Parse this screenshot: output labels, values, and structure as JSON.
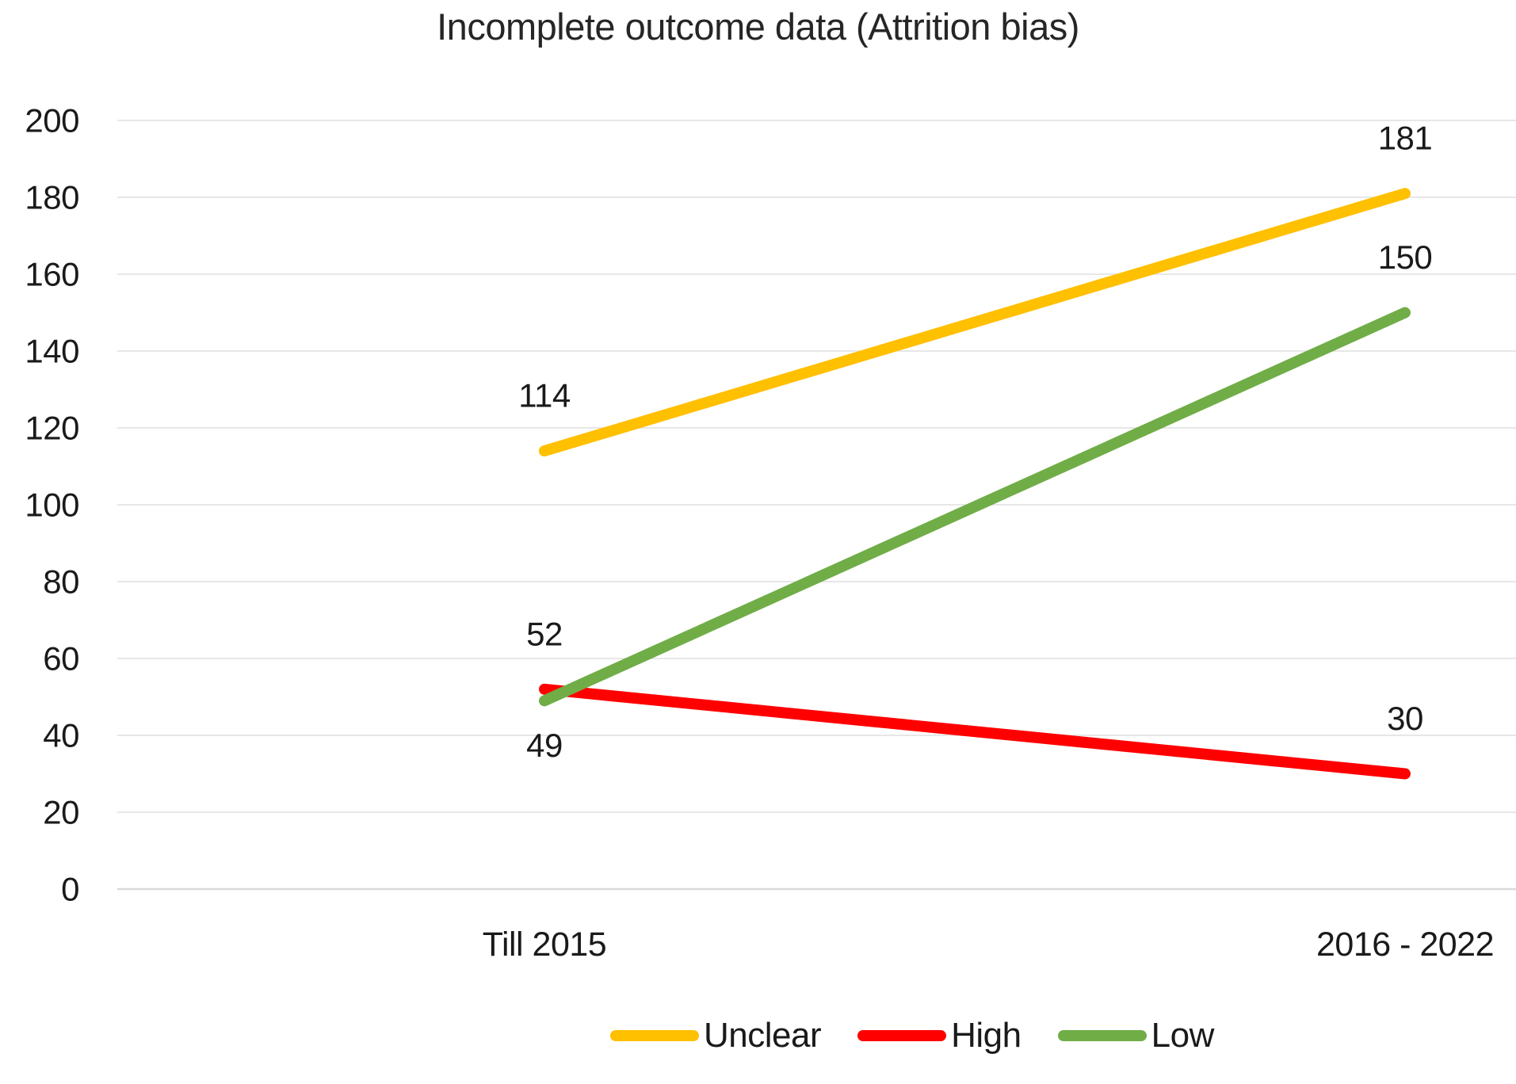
{
  "chart_data": {
    "type": "line",
    "title": "Incomplete outcome data (Attrition bias)",
    "categories": [
      "Till 2015",
      "2016 - 2022"
    ],
    "series": [
      {
        "name": "Unclear",
        "color": "#FFC000",
        "values": [
          114,
          181
        ],
        "label_positions": [
          "above",
          "above"
        ]
      },
      {
        "name": "High",
        "color": "#FF0000",
        "values": [
          52,
          30
        ],
        "label_positions": [
          "above",
          "above"
        ]
      },
      {
        "name": "Low",
        "color": "#70AD47",
        "values": [
          49,
          150
        ],
        "label_positions": [
          "below",
          "above"
        ]
      }
    ],
    "ylim": [
      0,
      200
    ],
    "ytick_step": 20,
    "ytick_labels": [
      "0",
      "20",
      "40",
      "60",
      "80",
      "100",
      "120",
      "140",
      "160",
      "180",
      "200"
    ],
    "grid": true,
    "data_labels": true,
    "legend_position": "bottom",
    "xlabel": "",
    "ylabel": "",
    "colors": {
      "grid": "#E7E7E7",
      "zero_line": "#D9D9D9",
      "text": "#1A1A1A",
      "title_text": "#262626"
    }
  }
}
